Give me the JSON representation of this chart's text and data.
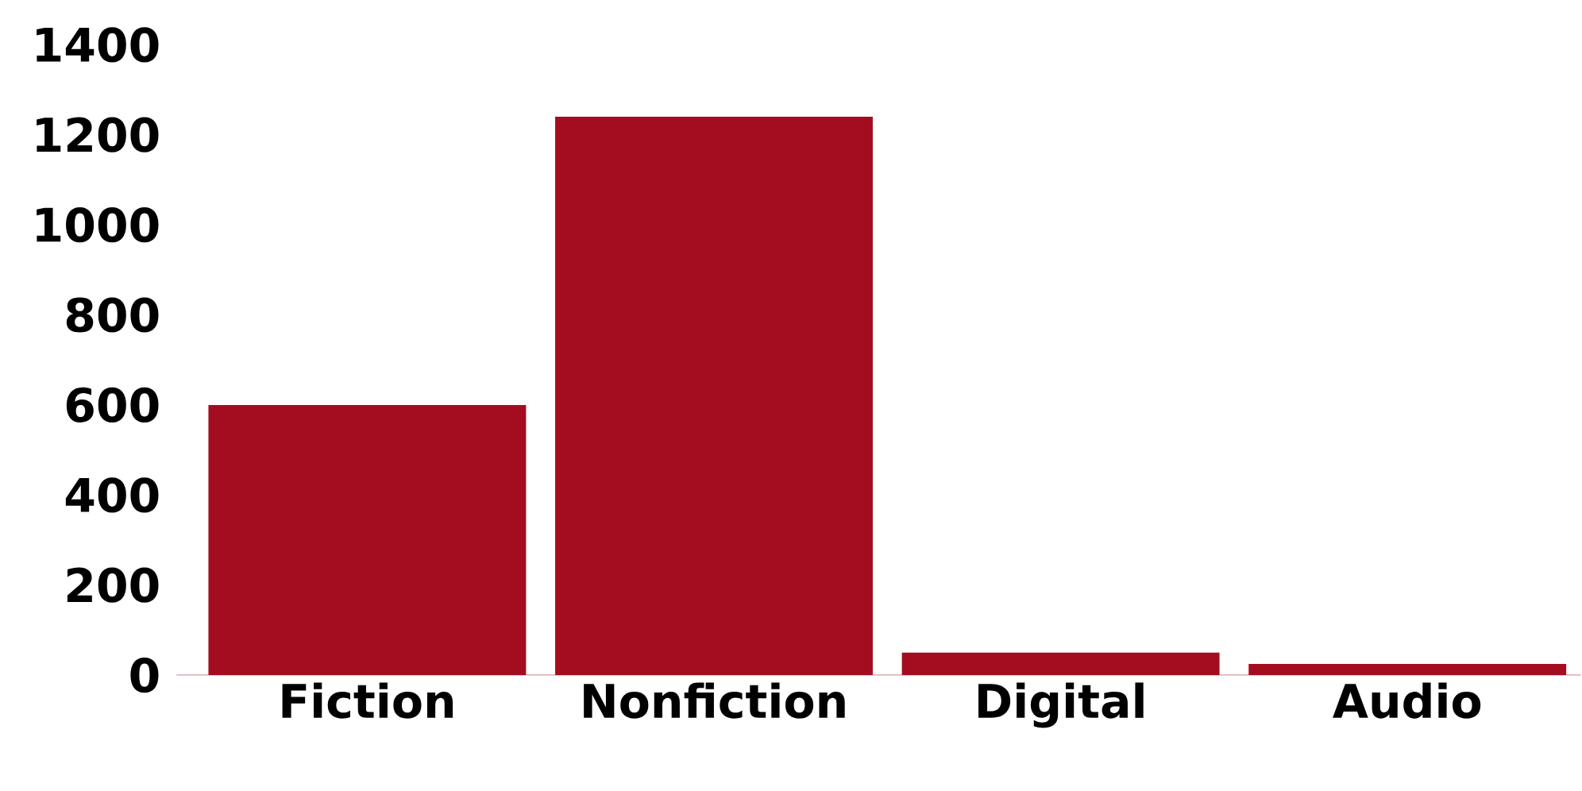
{
  "chart_data": {
    "type": "bar",
    "categories": [
      "Fiction",
      "Nonfiction",
      "Digital",
      "Audio"
    ],
    "values": [
      600,
      1240,
      50,
      25
    ],
    "color": "#a30d1f",
    "ylim": [
      0,
      1400
    ],
    "yticks": [
      0,
      200,
      400,
      600,
      800,
      1000,
      1200,
      1400
    ]
  }
}
